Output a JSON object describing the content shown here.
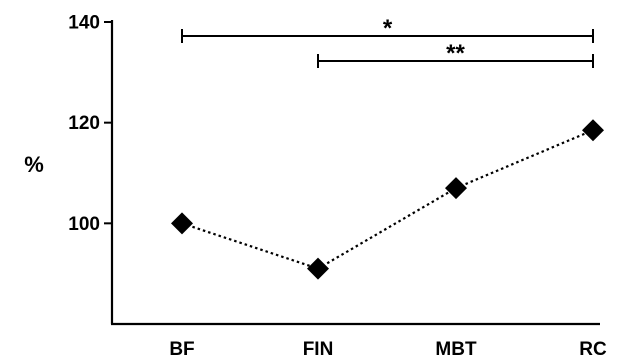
{
  "chart_data": {
    "type": "line",
    "categories": [
      "BF",
      "FIN",
      "MBT",
      "RC"
    ],
    "values": [
      100,
      91,
      107,
      118.5
    ],
    "ylabel": "%",
    "xlabel": "",
    "ylim": [
      80,
      140
    ],
    "yticks": [
      100,
      120,
      140
    ],
    "marker": "diamond",
    "line_style": "dotted",
    "grid": false,
    "significance": [
      {
        "from": "BF",
        "to": "RC",
        "label": "*"
      },
      {
        "from": "FIN",
        "to": "RC",
        "label": "**"
      }
    ]
  }
}
